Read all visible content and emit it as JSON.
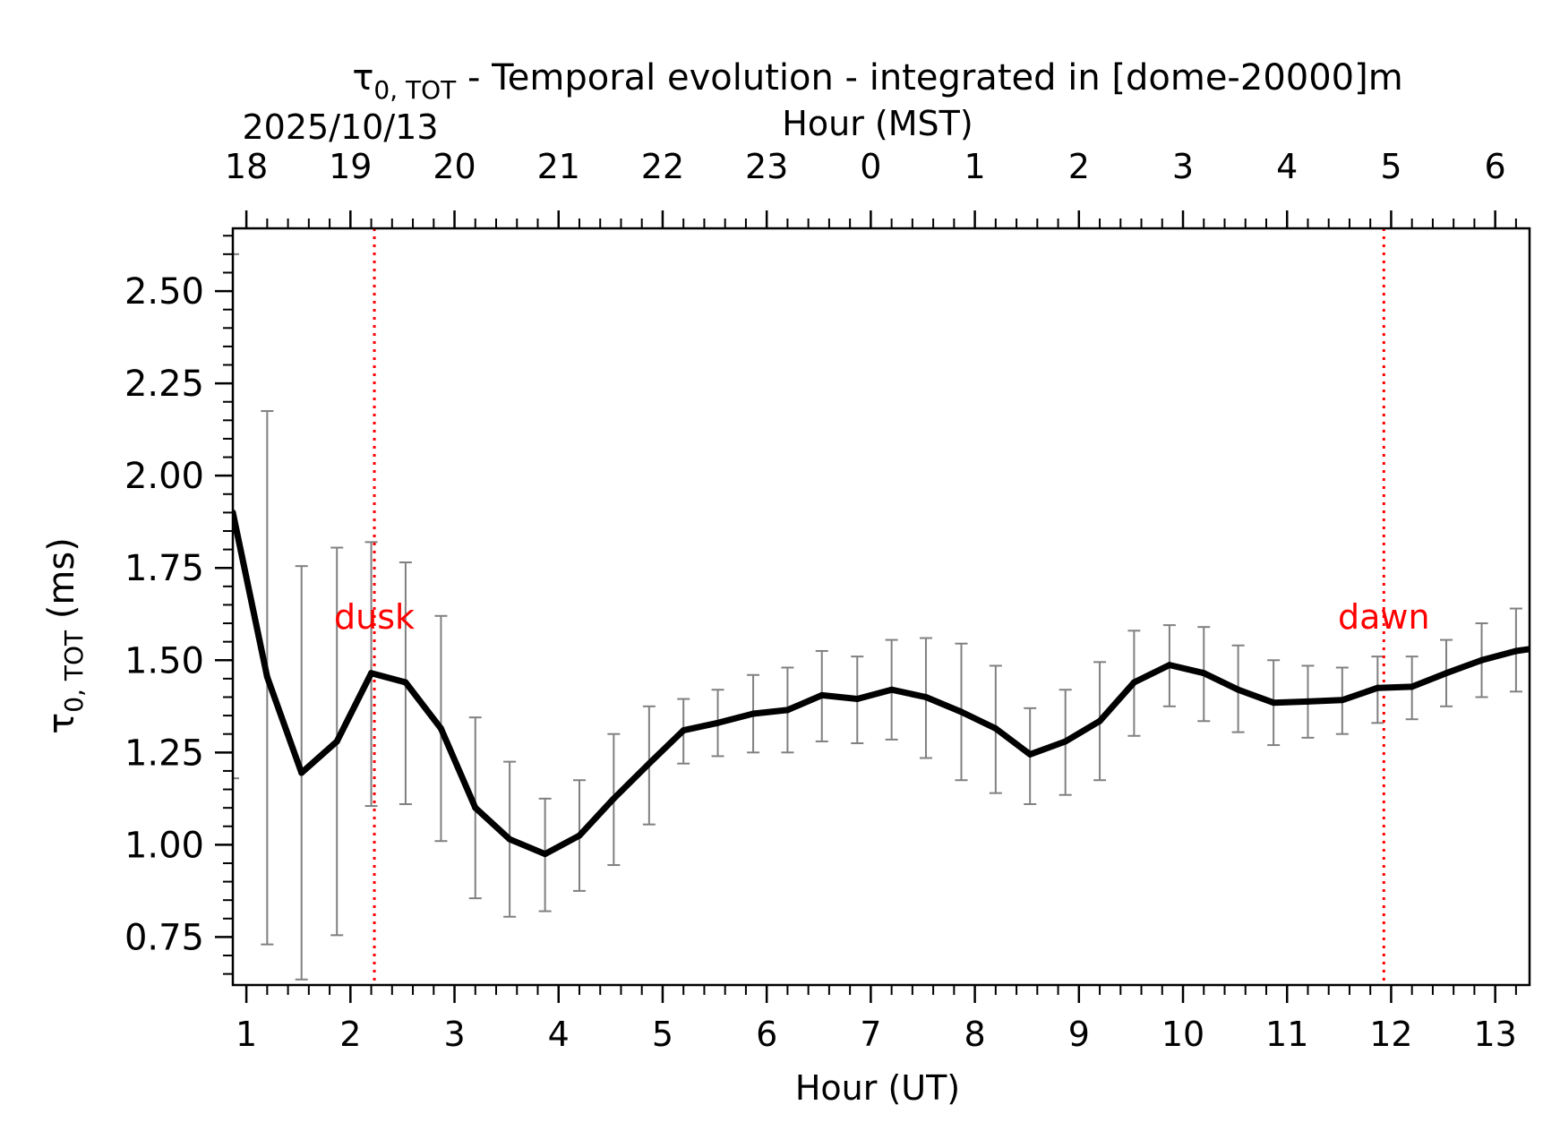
{
  "chart_data": {
    "type": "line",
    "title_symbol": "τ",
    "title_subscript": "0, TOT",
    "title_rest": " - Temporal evolution - integrated in [dome-20000]m",
    "date_label": "2025/10/13",
    "xlabel": "Hour (UT)",
    "xlabel_top": "Hour (MST)",
    "ylabel_symbol": "τ",
    "ylabel_subscript": "0, TOT",
    "ylabel_unit": " (ms)",
    "xlim": [
      0.87,
      13.33
    ],
    "ylim": [
      0.62,
      2.67
    ],
    "x_ticks": [
      1,
      2,
      3,
      4,
      5,
      6,
      7,
      8,
      9,
      10,
      11,
      12,
      13
    ],
    "x_tick_labels": [
      "1",
      "2",
      "3",
      "4",
      "5",
      "6",
      "7",
      "8",
      "9",
      "10",
      "11",
      "12",
      "13"
    ],
    "top_tick_labels": [
      "18",
      "19",
      "20",
      "21",
      "22",
      "23",
      "0",
      "1",
      "2",
      "3",
      "4",
      "5",
      "6"
    ],
    "y_ticks": [
      0.75,
      1.0,
      1.25,
      1.5,
      1.75,
      2.0,
      2.25,
      2.5
    ],
    "y_tick_labels": [
      "0.75",
      "1.00",
      "1.25",
      "1.50",
      "1.75",
      "2.00",
      "2.25",
      "2.50"
    ],
    "series": [
      {
        "name": "tau0_tot",
        "color": "#000000",
        "x": [
          0.87,
          1.2,
          1.53,
          1.87,
          2.2,
          2.53,
          2.87,
          3.2,
          3.53,
          3.87,
          4.2,
          4.53,
          4.87,
          5.2,
          5.53,
          5.87,
          6.2,
          6.53,
          6.87,
          7.2,
          7.53,
          7.87,
          8.2,
          8.53,
          8.87,
          9.2,
          9.53,
          9.87,
          10.2,
          10.53,
          10.87,
          11.2,
          11.53,
          11.87,
          12.2,
          12.53,
          12.87,
          13.2,
          13.33
        ],
        "y": [
          1.9,
          1.455,
          1.195,
          1.28,
          1.465,
          1.44,
          1.315,
          1.1,
          1.015,
          0.975,
          1.025,
          1.125,
          1.22,
          1.31,
          1.33,
          1.355,
          1.365,
          1.405,
          1.395,
          1.42,
          1.4,
          1.36,
          1.315,
          1.245,
          1.28,
          1.335,
          1.44,
          1.487,
          1.465,
          1.42,
          1.385,
          1.388,
          1.392,
          1.425,
          1.428,
          1.465,
          1.5,
          1.525,
          1.53
        ],
        "err_low": [
          1.18,
          0.73,
          0.635,
          0.755,
          1.105,
          1.11,
          1.01,
          0.855,
          0.805,
          0.82,
          0.875,
          0.945,
          1.055,
          1.22,
          1.24,
          1.25,
          1.25,
          1.28,
          1.275,
          1.285,
          1.235,
          1.175,
          1.14,
          1.11,
          1.135,
          1.175,
          1.295,
          1.375,
          1.335,
          1.305,
          1.27,
          1.29,
          1.3,
          1.33,
          1.34,
          1.375,
          1.4,
          1.415,
          null
        ],
        "err_high": [
          2.6,
          2.175,
          1.755,
          1.805,
          1.82,
          1.765,
          1.62,
          1.345,
          1.225,
          1.125,
          1.175,
          1.3,
          1.375,
          1.395,
          1.42,
          1.46,
          1.48,
          1.525,
          1.51,
          1.555,
          1.56,
          1.545,
          1.485,
          1.37,
          1.42,
          1.495,
          1.58,
          1.595,
          1.59,
          1.54,
          1.5,
          1.485,
          1.48,
          1.51,
          1.51,
          1.555,
          1.6,
          1.64,
          null
        ],
        "err_color": "#808080"
      }
    ],
    "annotations": [
      {
        "text": "dusk",
        "x": 2.23,
        "label_y": 1.62,
        "color": "#ff0000"
      },
      {
        "text": "dawn",
        "x": 11.93,
        "label_y": 1.62,
        "color": "#ff0000"
      }
    ]
  }
}
